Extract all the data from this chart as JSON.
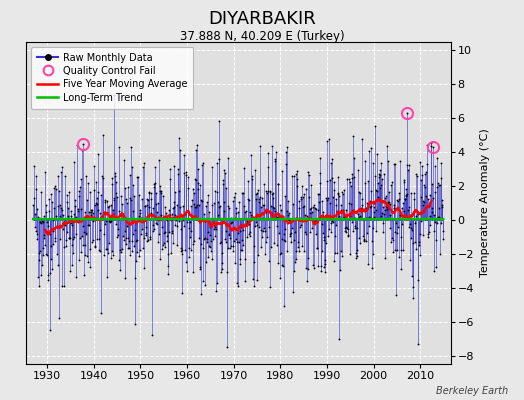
{
  "title": "DIYARBAKIR",
  "subtitle": "37.888 N, 40.209 E (Turkey)",
  "ylabel": "Temperature Anomaly (°C)",
  "credit": "Berkeley Earth",
  "ylim": [
    -8.5,
    10.5
  ],
  "xlim": [
    1925.5,
    2016.5
  ],
  "yticks": [
    -8,
    -6,
    -4,
    -2,
    0,
    2,
    4,
    6,
    8,
    10
  ],
  "xticks": [
    1930,
    1940,
    1950,
    1960,
    1970,
    1980,
    1990,
    2000,
    2010
  ],
  "bg_color": "#e8e8e8",
  "plot_bg_color": "#e0e0e0",
  "raw_line_color": "#3333cc",
  "raw_dot_color": "#000000",
  "ma_color": "#ff0000",
  "trend_color": "#00bb00",
  "qc_color": "#ff44aa",
  "start_year": 1927,
  "end_year": 2015,
  "seed": 42,
  "qc_fail_points": [
    {
      "year": 1937.75,
      "value": 4.5
    },
    {
      "year": 2007.25,
      "value": 6.3
    },
    {
      "year": 2012.75,
      "value": 4.3
    }
  ],
  "trend_value": 0.05
}
